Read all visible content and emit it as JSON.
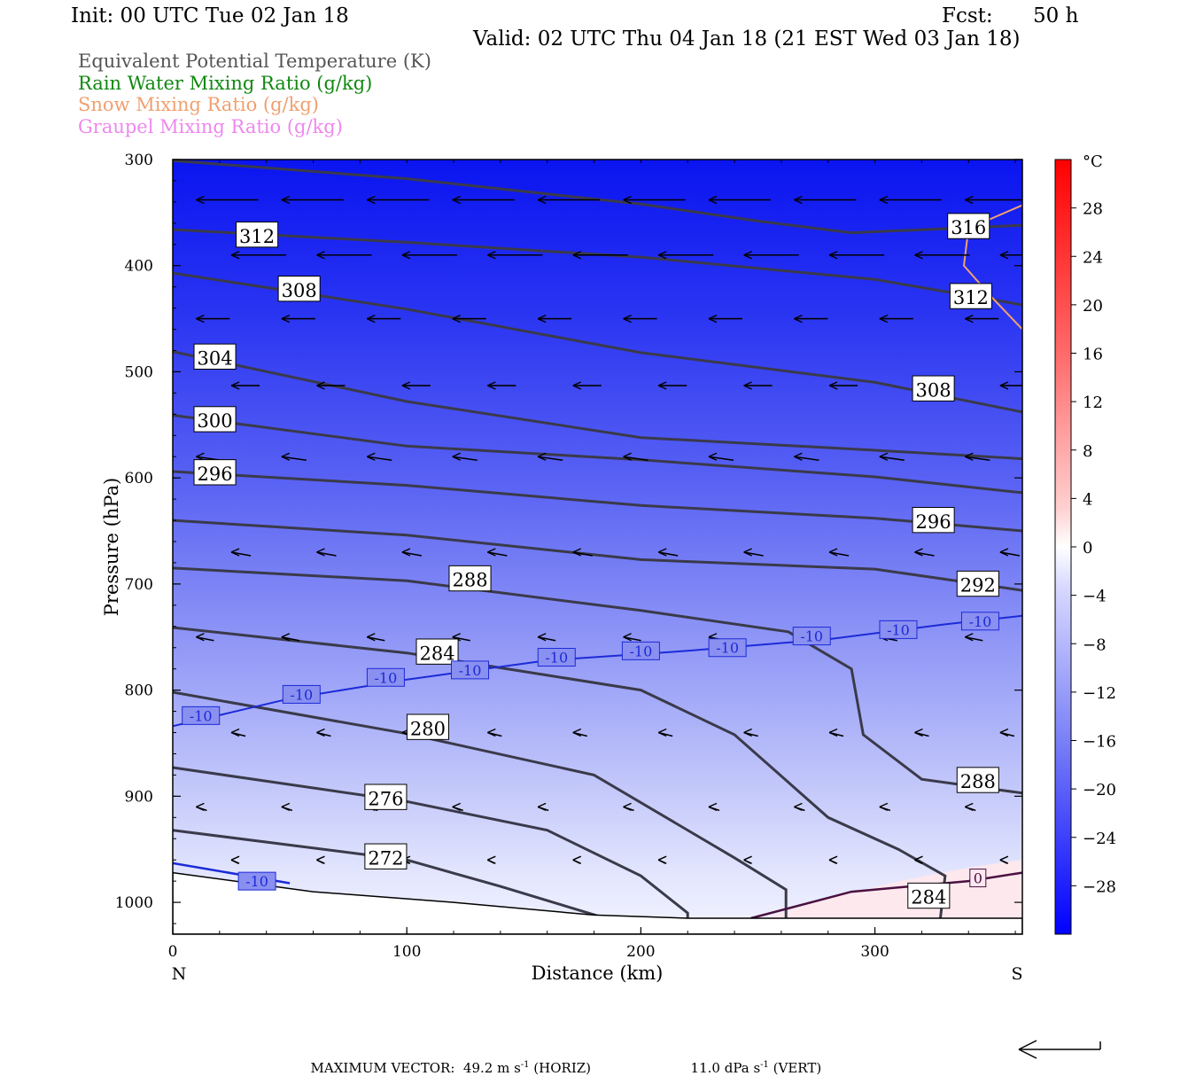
{
  "header": {
    "init": "Init: 00 UTC Tue 02 Jan 18",
    "fcst_label": "Fcst:",
    "fcst_value": "50 h",
    "valid": "Valid: 02 UTC Thu 04 Jan 18 (21 EST Wed 03 Jan 18)"
  },
  "legend": [
    {
      "label": "Equivalent Potential Temperature (K)",
      "color": "#555555"
    },
    {
      "label": "Rain Water Mixing Ratio (g/kg)",
      "color": "#118811"
    },
    {
      "label": "Snow Mixing Ratio (g/kg)",
      "color": "#f0a070"
    },
    {
      "label": "Graupel Mixing Ratio (g/kg)",
      "color": "#ee88ee"
    }
  ],
  "chart_data": {
    "type": "cross-section",
    "xlabel": "Distance (km)",
    "ylabel": "Pressure (hPa)",
    "xlim": [
      0,
      363
    ],
    "ylim": [
      300,
      1030
    ],
    "x_ticks": [
      "0",
      "100",
      "200",
      "300"
    ],
    "y_ticks": [
      "300",
      "400",
      "500",
      "600",
      "700",
      "800",
      "900",
      "1000"
    ],
    "x_end_labels": {
      "left": "N",
      "right": "S"
    },
    "colorbar": {
      "unit": "°C",
      "tick_labels": [
        "28",
        "24",
        "20",
        "16",
        "12",
        "8",
        "4",
        "0",
        "−4",
        "−8",
        "−12",
        "−16",
        "−20",
        "−24",
        "−28"
      ],
      "range": [
        -32,
        32
      ]
    },
    "theta_e_contours": [
      {
        "value": 316,
        "label": "316",
        "label_pos": [
          340,
          364
        ],
        "points": [
          [
            0,
            301
          ],
          [
            100,
            318
          ],
          [
            200,
            342
          ],
          [
            250,
            358
          ],
          [
            290,
            369
          ],
          [
            363,
            362
          ]
        ]
      },
      {
        "value": 312,
        "label": "312",
        "label_pos": [
          36,
          372
        ],
        "points": [
          [
            0,
            366
          ],
          [
            100,
            378
          ],
          [
            200,
            392
          ],
          [
            300,
            413
          ],
          [
            363,
            437
          ]
        ]
      },
      {
        "value": 312,
        "label": "312",
        "label_pos": [
          341,
          430
        ],
        "points": []
      },
      {
        "value": 308,
        "label": "308",
        "label_pos": [
          54,
          423
        ],
        "points": [
          [
            0,
            407
          ],
          [
            100,
            441
          ],
          [
            200,
            482
          ],
          [
            300,
            510
          ],
          [
            363,
            538
          ]
        ]
      },
      {
        "value": 308,
        "label": "308",
        "label_pos": [
          325,
          517
        ],
        "points": []
      },
      {
        "value": 304,
        "label": "304",
        "label_pos": [
          18,
          487
        ],
        "points": [
          [
            0,
            481
          ],
          [
            100,
            528
          ],
          [
            200,
            562
          ],
          [
            300,
            574
          ],
          [
            363,
            582
          ]
        ]
      },
      {
        "value": 300,
        "label": "300",
        "label_pos": [
          18,
          546
        ],
        "points": [
          [
            0,
            541
          ],
          [
            100,
            570
          ],
          [
            200,
            583
          ],
          [
            300,
            599
          ],
          [
            363,
            614
          ]
        ]
      },
      {
        "value": 296,
        "label": "296",
        "label_pos": [
          18,
          596
        ],
        "points": [
          [
            0,
            594
          ],
          [
            100,
            607
          ],
          [
            200,
            626
          ],
          [
            300,
            638
          ],
          [
            363,
            650
          ]
        ]
      },
      {
        "value": 296,
        "label": "296",
        "label_pos": [
          325,
          641
        ],
        "points": []
      },
      {
        "value": 292,
        "label": "292",
        "label_pos": [
          344,
          701
        ],
        "points": [
          [
            0,
            640
          ],
          [
            100,
            654
          ],
          [
            200,
            677
          ],
          [
            300,
            686
          ],
          [
            363,
            706
          ]
        ]
      },
      {
        "value": 288,
        "label": "288",
        "label_pos": [
          127,
          696
        ],
        "points": [
          [
            0,
            685
          ],
          [
            100,
            697
          ],
          [
            200,
            725
          ],
          [
            263,
            745
          ],
          [
            290,
            780
          ],
          [
            295,
            842
          ],
          [
            320,
            884
          ],
          [
            363,
            897
          ]
        ]
      },
      {
        "value": 288,
        "label": "288",
        "label_pos": [
          344,
          886
        ],
        "points": []
      },
      {
        "value": 284,
        "label": "284",
        "label_pos": [
          113,
          765
        ],
        "points": [
          [
            0,
            741
          ],
          [
            100,
            765
          ],
          [
            200,
            800
          ],
          [
            240,
            842
          ],
          [
            280,
            920
          ],
          [
            310,
            950
          ],
          [
            330,
            975
          ],
          [
            328,
            1015
          ]
        ]
      },
      {
        "value": 284,
        "label": "284",
        "label_pos": [
          323,
          995
        ],
        "points": []
      },
      {
        "value": 280,
        "label": "280",
        "label_pos": [
          109,
          836
        ],
        "points": [
          [
            0,
            802
          ],
          [
            100,
            841
          ],
          [
            180,
            880
          ],
          [
            240,
            958
          ],
          [
            262,
            988
          ],
          [
            262,
            1015
          ]
        ]
      },
      {
        "value": 276,
        "label": "276",
        "label_pos": [
          91,
          902
        ],
        "points": [
          [
            0,
            873
          ],
          [
            100,
            905
          ],
          [
            160,
            932
          ],
          [
            200,
            975
          ],
          [
            220,
            1010
          ],
          [
            220,
            1015
          ]
        ]
      },
      {
        "value": 272,
        "label": "272",
        "label_pos": [
          91,
          958
        ],
        "points": [
          [
            0,
            932
          ],
          [
            100,
            960
          ],
          [
            140,
            985
          ],
          [
            185,
            1015
          ]
        ]
      }
    ],
    "isotherm_minus10": {
      "value": -10,
      "points": [
        [
          0,
          834
        ],
        [
          50,
          808
        ],
        [
          100,
          790
        ],
        [
          160,
          772
        ],
        [
          220,
          763
        ],
        [
          280,
          752
        ],
        [
          330,
          738
        ],
        [
          363,
          730
        ]
      ],
      "labels": [
        [
          12,
          824
        ],
        [
          55,
          804
        ],
        [
          91,
          788
        ],
        [
          127,
          781
        ],
        [
          164,
          769
        ],
        [
          200,
          763
        ],
        [
          237,
          760
        ],
        [
          273,
          749
        ],
        [
          310,
          743
        ],
        [
          345,
          735
        ]
      ]
    },
    "isotherm_minus10_low": {
      "points": [
        [
          0,
          963
        ],
        [
          50,
          982
        ]
      ],
      "labels": [
        [
          36,
          980
        ]
      ]
    },
    "isotherm_zero": {
      "value": 0,
      "points": [
        [
          247,
          1015
        ],
        [
          290,
          990
        ],
        [
          340,
          980
        ],
        [
          363,
          972
        ]
      ],
      "labels": [
        [
          344,
          977
        ]
      ]
    },
    "snow_contour": {
      "points": [
        [
          363,
          343
        ],
        [
          340,
          365
        ],
        [
          338,
          400
        ],
        [
          350,
          430
        ],
        [
          363,
          460
        ]
      ]
    },
    "surface": {
      "points": [
        [
          0,
          972
        ],
        [
          60,
          990
        ],
        [
          120,
          1000
        ],
        [
          180,
          1012
        ],
        [
          220,
          1015
        ],
        [
          363,
          1015
        ]
      ]
    },
    "max_vector_text": "MAXIMUM VECTOR:  49.2 m s",
    "max_vector_horiz": "-1 (HORIZ)",
    "max_vector_vert_text": "11.0 dPa s",
    "max_vector_vert": "-1 (VERT)"
  }
}
